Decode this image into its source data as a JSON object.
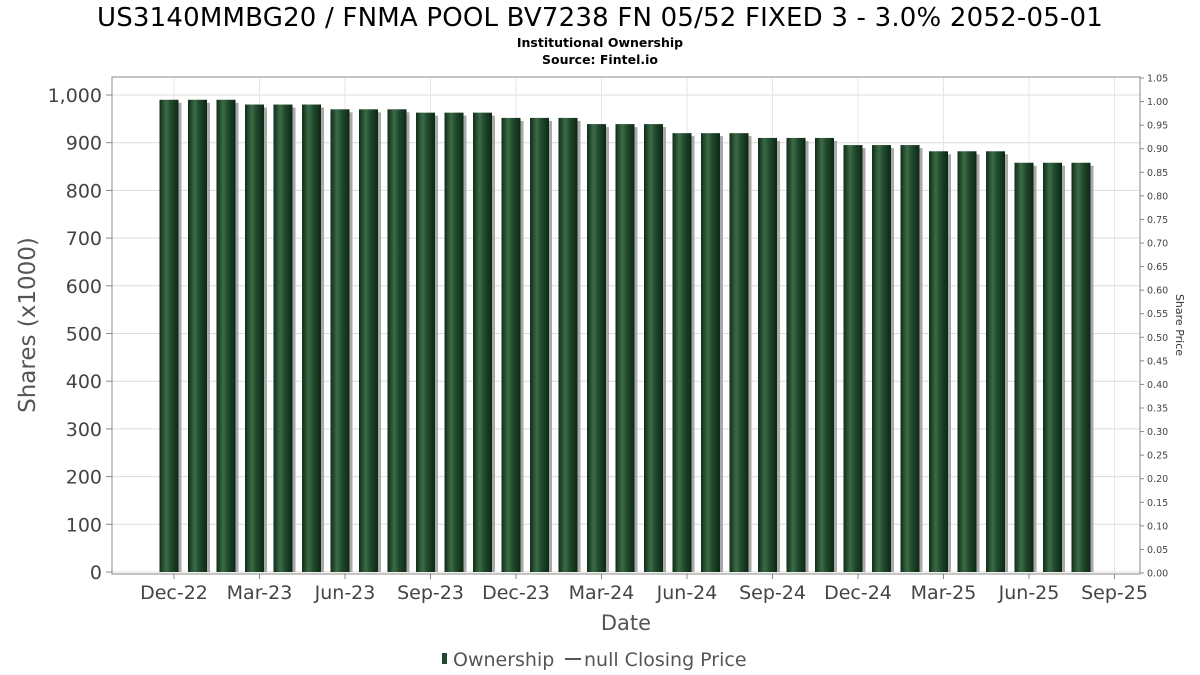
{
  "chart_data": {
    "type": "bar",
    "title": "US3140MMBG20 / FNMA POOL BV7238 FN 05/52 FIXED 3 - 3.0% 2052-05-01",
    "subtitle_lines": [
      "Institutional Ownership",
      "Source: Fintel.io"
    ],
    "xlabel": "Date",
    "ylabel": "Shares (x1000)",
    "ylabel_right": "Share Price",
    "x_tick_labels": [
      "Dec-22",
      "Mar-23",
      "Jun-23",
      "Sep-23",
      "Dec-23",
      "Mar-24",
      "Jun-24",
      "Sep-24",
      "Dec-24",
      "Mar-25",
      "Jun-25",
      "Sep-25"
    ],
    "y_ticks_left": [
      "0",
      "100",
      "200",
      "300",
      "400",
      "500",
      "600",
      "700",
      "800",
      "900",
      "1,000"
    ],
    "y_ticks_right": [
      "0.00",
      "0.05",
      "0.10",
      "0.15",
      "0.20",
      "0.25",
      "0.30",
      "0.35",
      "0.40",
      "0.45",
      "0.50",
      "0.55",
      "0.60",
      "0.65",
      "0.70",
      "0.75",
      "0.80",
      "0.85",
      "0.90",
      "0.95",
      "1.00",
      "1.05"
    ],
    "ylim_left": [
      0,
      1000
    ],
    "ylim_right": [
      0,
      1.05
    ],
    "grid": true,
    "legend_position": "bottom",
    "legend": [
      {
        "label": "Ownership",
        "color": "#1f4a2c"
      },
      {
        "label": "null Closing Price",
        "color": "#555555"
      }
    ],
    "series": [
      {
        "name": "Ownership",
        "color": "#1f4a2c",
        "values": [
          990,
          990,
          990,
          980,
          980,
          980,
          970,
          970,
          970,
          963,
          963,
          963,
          952,
          952,
          952,
          939,
          939,
          939,
          920,
          920,
          920,
          910,
          910,
          910,
          895,
          895,
          895,
          882,
          882,
          882,
          858,
          858,
          858
        ]
      }
    ]
  }
}
